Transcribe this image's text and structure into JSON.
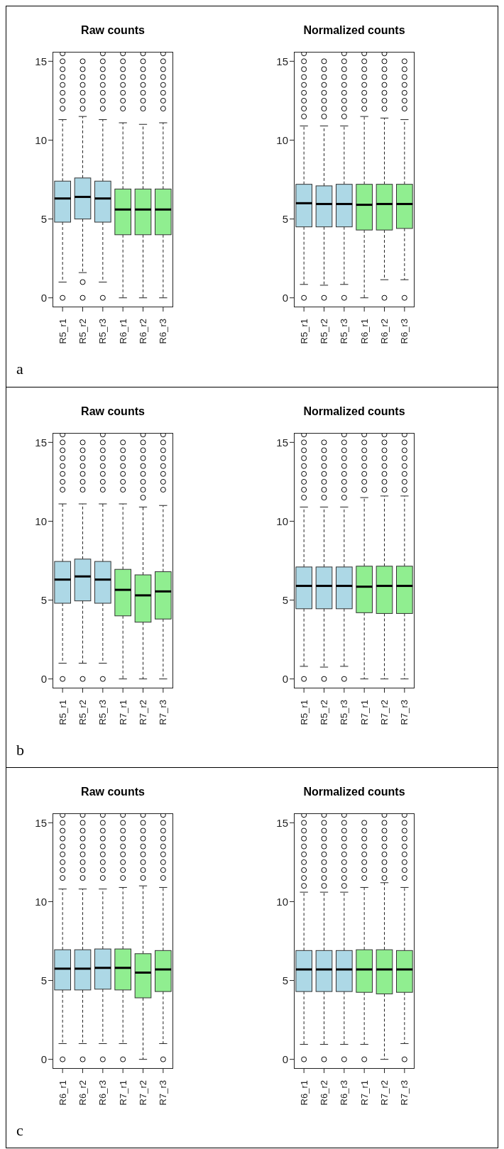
{
  "chart_data": [
    {
      "type": "box",
      "title": "Raw counts",
      "annotations": [
        "a"
      ],
      "categories": [
        "R5_r1",
        "R5_r2",
        "R5_r3",
        "R6_r1",
        "R6_r2",
        "R6_r3"
      ],
      "colors": [
        "#add8e6",
        "#add8e6",
        "#add8e6",
        "#90ee90",
        "#90ee90",
        "#90ee90"
      ],
      "ylim": [
        -0.6,
        15.6
      ],
      "yticks": [
        0,
        5,
        10,
        15
      ],
      "boxes": [
        {
          "low": 1.0,
          "q1": 4.8,
          "median": 6.3,
          "q3": 7.4,
          "high": 11.3,
          "outliers": [
            0,
            12,
            12.5,
            13,
            13.5,
            14,
            14.5,
            15,
            15.5
          ]
        },
        {
          "low": 1.6,
          "q1": 5.0,
          "median": 6.4,
          "q3": 7.6,
          "high": 11.5,
          "outliers": [
            0,
            1.0,
            12,
            12.5,
            13,
            13.5,
            14,
            14.5,
            15
          ]
        },
        {
          "low": 1.0,
          "q1": 4.8,
          "median": 6.3,
          "q3": 7.4,
          "high": 11.3,
          "outliers": [
            0,
            12,
            12.5,
            13,
            13.5,
            14,
            14.5,
            15,
            15.5
          ]
        },
        {
          "low": 0,
          "q1": 4.0,
          "median": 5.6,
          "q3": 6.9,
          "high": 11.1,
          "outliers": [
            12,
            12.5,
            13,
            13.5,
            14,
            14.5,
            15,
            15.5
          ]
        },
        {
          "low": 0,
          "q1": 4.0,
          "median": 5.6,
          "q3": 6.9,
          "high": 11.0,
          "outliers": [
            12,
            12.5,
            13,
            13.5,
            14,
            14.5,
            15,
            15.5
          ]
        },
        {
          "low": 0,
          "q1": 4.0,
          "median": 5.6,
          "q3": 6.9,
          "high": 11.1,
          "outliers": [
            12,
            12.5,
            13,
            13.5,
            14,
            14.5,
            15,
            15.5
          ]
        }
      ]
    },
    {
      "type": "box",
      "title": "Normalized counts",
      "categories": [
        "R5_r1",
        "R5_r2",
        "R5_r3",
        "R6_r1",
        "R6_r2",
        "R6_r3"
      ],
      "colors": [
        "#add8e6",
        "#add8e6",
        "#add8e6",
        "#90ee90",
        "#90ee90",
        "#90ee90"
      ],
      "ylim": [
        -0.6,
        15.6
      ],
      "yticks": [
        0,
        5,
        10,
        15
      ],
      "boxes": [
        {
          "low": 0.85,
          "q1": 4.5,
          "median": 6.0,
          "q3": 7.2,
          "high": 10.9,
          "outliers": [
            0,
            11.5,
            12,
            12.5,
            13,
            13.5,
            14,
            14.5,
            15,
            15.5
          ]
        },
        {
          "low": 0.8,
          "q1": 4.5,
          "median": 5.95,
          "q3": 7.1,
          "high": 10.9,
          "outliers": [
            0,
            11.5,
            12,
            12.5,
            13,
            13.5,
            14,
            14.5,
            15
          ]
        },
        {
          "low": 0.85,
          "q1": 4.5,
          "median": 5.95,
          "q3": 7.2,
          "high": 10.9,
          "outliers": [
            0,
            11.5,
            12,
            12.5,
            13,
            13.5,
            14,
            14.5,
            15,
            15.5
          ]
        },
        {
          "low": 0,
          "q1": 4.3,
          "median": 5.9,
          "q3": 7.2,
          "high": 11.5,
          "outliers": [
            12,
            12.5,
            13,
            13.5,
            14,
            14.5,
            15,
            15.5
          ]
        },
        {
          "low": 1.15,
          "q1": 4.3,
          "median": 5.95,
          "q3": 7.2,
          "high": 11.4,
          "outliers": [
            0,
            12,
            12.5,
            13,
            13.5,
            14,
            14.5,
            15,
            15.5
          ]
        },
        {
          "low": 1.15,
          "q1": 4.4,
          "median": 5.95,
          "q3": 7.2,
          "high": 11.3,
          "outliers": [
            0,
            12,
            12.5,
            13,
            13.5,
            14,
            14.5,
            15
          ]
        }
      ]
    },
    {
      "type": "box",
      "title": "Raw counts",
      "annotations": [
        "b"
      ],
      "categories": [
        "R5_r1",
        "R5_r2",
        "R5_r3",
        "R7_r1",
        "R7_r2",
        "R7_r3"
      ],
      "colors": [
        "#add8e6",
        "#add8e6",
        "#add8e6",
        "#90ee90",
        "#90ee90",
        "#90ee90"
      ],
      "ylim": [
        -0.6,
        15.6
      ],
      "yticks": [
        0,
        5,
        10,
        15
      ],
      "boxes": [
        {
          "low": 1.0,
          "q1": 4.8,
          "median": 6.3,
          "q3": 7.45,
          "high": 11.1,
          "outliers": [
            0,
            12,
            12.5,
            13,
            13.5,
            14,
            14.5,
            15,
            15.5
          ]
        },
        {
          "low": 1.0,
          "q1": 4.95,
          "median": 6.5,
          "q3": 7.6,
          "high": 11.1,
          "outliers": [
            0,
            12,
            12.5,
            13,
            13.5,
            14,
            14.5,
            15
          ]
        },
        {
          "low": 1.0,
          "q1": 4.8,
          "median": 6.3,
          "q3": 7.45,
          "high": 11.1,
          "outliers": [
            0,
            12,
            12.5,
            13,
            13.5,
            14,
            14.5,
            15,
            15.5
          ]
        },
        {
          "low": 0,
          "q1": 4.0,
          "median": 5.65,
          "q3": 6.95,
          "high": 11.1,
          "outliers": [
            12,
            12.5,
            13,
            13.5,
            14,
            14.5,
            15
          ]
        },
        {
          "low": 0,
          "q1": 3.6,
          "median": 5.3,
          "q3": 6.6,
          "high": 10.9,
          "outliers": [
            11.5,
            12,
            12.5,
            13,
            13.5,
            14,
            14.5,
            15,
            15.5
          ]
        },
        {
          "low": 0,
          "q1": 3.8,
          "median": 5.55,
          "q3": 6.8,
          "high": 11.0,
          "outliers": [
            12,
            12.5,
            13,
            13.5,
            14,
            14.5,
            15,
            15.5
          ]
        }
      ]
    },
    {
      "type": "box",
      "title": "Normalized counts",
      "categories": [
        "R5_r1",
        "R5_r2",
        "R5_r3",
        "R7_r1",
        "R7_r2",
        "R7_r3"
      ],
      "colors": [
        "#add8e6",
        "#add8e6",
        "#add8e6",
        "#90ee90",
        "#90ee90",
        "#90ee90"
      ],
      "ylim": [
        -0.6,
        15.6
      ],
      "yticks": [
        0,
        5,
        10,
        15
      ],
      "boxes": [
        {
          "low": 0.8,
          "q1": 4.45,
          "median": 5.9,
          "q3": 7.1,
          "high": 10.9,
          "outliers": [
            0,
            11.5,
            12,
            12.5,
            13,
            13.5,
            14,
            14.5,
            15,
            15.5
          ]
        },
        {
          "low": 0.75,
          "q1": 4.45,
          "median": 5.9,
          "q3": 7.1,
          "high": 10.9,
          "outliers": [
            0,
            11.5,
            12,
            12.5,
            13,
            13.5,
            14,
            14.5,
            15
          ]
        },
        {
          "low": 0.8,
          "q1": 4.45,
          "median": 5.9,
          "q3": 7.1,
          "high": 10.9,
          "outliers": [
            0,
            11.5,
            12,
            12.5,
            13,
            13.5,
            14,
            14.5,
            15,
            15.5
          ]
        },
        {
          "low": 0,
          "q1": 4.2,
          "median": 5.85,
          "q3": 7.15,
          "high": 11.5,
          "outliers": [
            12,
            12.5,
            13,
            13.5,
            14,
            14.5,
            15,
            15.5
          ]
        },
        {
          "low": 0,
          "q1": 4.15,
          "median": 5.9,
          "q3": 7.15,
          "high": 11.6,
          "outliers": [
            12,
            12.5,
            13,
            13.5,
            14,
            14.5,
            15,
            15.5
          ]
        },
        {
          "low": 0,
          "q1": 4.15,
          "median": 5.9,
          "q3": 7.15,
          "high": 11.6,
          "outliers": [
            12,
            12.5,
            13,
            13.5,
            14,
            14.5,
            15,
            15.5
          ]
        }
      ]
    },
    {
      "type": "box",
      "title": "Raw counts",
      "annotations": [
        "c"
      ],
      "categories": [
        "R6_r1",
        "R6_r2",
        "R6_r3",
        "R7_r1",
        "R7_r2",
        "R7_r3"
      ],
      "colors": [
        "#add8e6",
        "#add8e6",
        "#add8e6",
        "#90ee90",
        "#90ee90",
        "#90ee90"
      ],
      "ylim": [
        -0.6,
        15.6
      ],
      "yticks": [
        0,
        5,
        10,
        15
      ],
      "boxes": [
        {
          "low": 1.0,
          "q1": 4.4,
          "median": 5.75,
          "q3": 6.95,
          "high": 10.8,
          "outliers": [
            0,
            11.5,
            12,
            12.5,
            13,
            13.5,
            14,
            14.5,
            15,
            15.5
          ]
        },
        {
          "low": 1.0,
          "q1": 4.4,
          "median": 5.75,
          "q3": 6.95,
          "high": 10.8,
          "outliers": [
            0,
            11.5,
            12,
            12.5,
            13,
            13.5,
            14,
            14.5,
            15,
            15.5
          ]
        },
        {
          "low": 1.0,
          "q1": 4.45,
          "median": 5.8,
          "q3": 7.0,
          "high": 10.8,
          "outliers": [
            0,
            11.5,
            12,
            12.5,
            13,
            13.5,
            14,
            14.5,
            15,
            15.5
          ]
        },
        {
          "low": 1.0,
          "q1": 4.4,
          "median": 5.8,
          "q3": 7.0,
          "high": 10.9,
          "outliers": [
            0,
            11.5,
            12,
            12.5,
            13,
            13.5,
            14,
            14.5,
            15,
            15.5
          ]
        },
        {
          "low": 0,
          "q1": 3.9,
          "median": 5.5,
          "q3": 6.7,
          "high": 11.0,
          "outliers": [
            11.5,
            12,
            12.5,
            13,
            13.5,
            14,
            14.5,
            15,
            15.5
          ]
        },
        {
          "low": 1.0,
          "q1": 4.3,
          "median": 5.7,
          "q3": 6.9,
          "high": 10.9,
          "outliers": [
            0,
            11.5,
            12,
            12.5,
            13,
            13.5,
            14,
            14.5,
            15,
            15.5
          ]
        }
      ]
    },
    {
      "type": "box",
      "title": "Normalized counts",
      "categories": [
        "R6_r1",
        "R6_r2",
        "R6_r3",
        "R7_r1",
        "R7_r2",
        "R7_r3"
      ],
      "colors": [
        "#add8e6",
        "#add8e6",
        "#add8e6",
        "#90ee90",
        "#90ee90",
        "#90ee90"
      ],
      "ylim": [
        -0.6,
        15.6
      ],
      "yticks": [
        0,
        5,
        10,
        15
      ],
      "boxes": [
        {
          "low": 0.95,
          "q1": 4.3,
          "median": 5.7,
          "q3": 6.9,
          "high": 10.6,
          "outliers": [
            0,
            11,
            11.5,
            12,
            12.5,
            13,
            13.5,
            14,
            14.5,
            15,
            15.5
          ]
        },
        {
          "low": 0.95,
          "q1": 4.3,
          "median": 5.7,
          "q3": 6.9,
          "high": 10.6,
          "outliers": [
            0,
            11,
            11.5,
            12,
            12.5,
            13,
            13.5,
            14,
            14.5,
            15,
            15.5
          ]
        },
        {
          "low": 0.95,
          "q1": 4.3,
          "median": 5.7,
          "q3": 6.9,
          "high": 10.6,
          "outliers": [
            0,
            11,
            11.5,
            12,
            12.5,
            13,
            13.5,
            14,
            14.5,
            15,
            15.5
          ]
        },
        {
          "low": 0.95,
          "q1": 4.25,
          "median": 5.7,
          "q3": 6.95,
          "high": 10.9,
          "outliers": [
            0,
            11.5,
            12,
            12.5,
            13,
            13.5,
            14,
            14.5,
            15
          ]
        },
        {
          "low": 0,
          "q1": 4.15,
          "median": 5.7,
          "q3": 6.95,
          "high": 11.2,
          "outliers": [
            11.5,
            12,
            12.5,
            13,
            13.5,
            14,
            14.5,
            15,
            15.5
          ]
        },
        {
          "low": 1.0,
          "q1": 4.25,
          "median": 5.7,
          "q3": 6.9,
          "high": 10.9,
          "outliers": [
            0,
            11.5,
            12,
            12.5,
            13,
            13.5,
            14,
            14.5,
            15,
            15.5
          ]
        }
      ]
    }
  ]
}
